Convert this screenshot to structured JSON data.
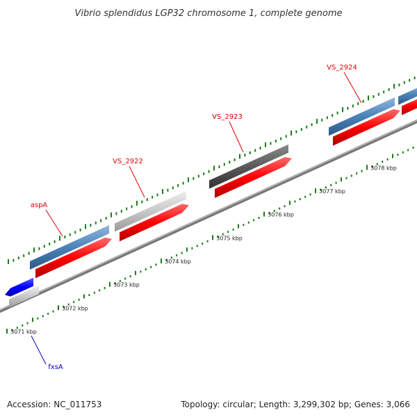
{
  "title": "Vibrio splendidus LGP32 chromosome 1, complete genome",
  "footer": {
    "accession": "Accession: NC_011753",
    "summary": "Topology: circular; Length: 3,299,302 bp; Genes: 3,066"
  },
  "colors": {
    "red": "#ff0000",
    "blue_gene": "#0000ff",
    "steel_blue": "#4a82b8",
    "light_grey": "#c8c8c8",
    "dark_grey": "#5a5a5a",
    "backbone": "#888888",
    "tick": "#1a7a1a",
    "label_red": "#dd0000",
    "label_blue": "#0000cc"
  },
  "ticks": [
    {
      "label": "3071 kbp"
    },
    {
      "label": "3072 kbp"
    },
    {
      "label": "3073 kbp"
    },
    {
      "label": "3074 kbp"
    },
    {
      "label": "3075 kbp"
    },
    {
      "label": "3076 kbp"
    },
    {
      "label": "3077 kbp"
    },
    {
      "label": "3078 kbp"
    }
  ],
  "gene_labels": [
    {
      "name": "aspA",
      "color": "red"
    },
    {
      "name": "VS_2922",
      "color": "red"
    },
    {
      "name": "VS_2923",
      "color": "red"
    },
    {
      "name": "VS_2924",
      "color": "red"
    },
    {
      "name": "fxsA",
      "color": "blue"
    }
  ]
}
